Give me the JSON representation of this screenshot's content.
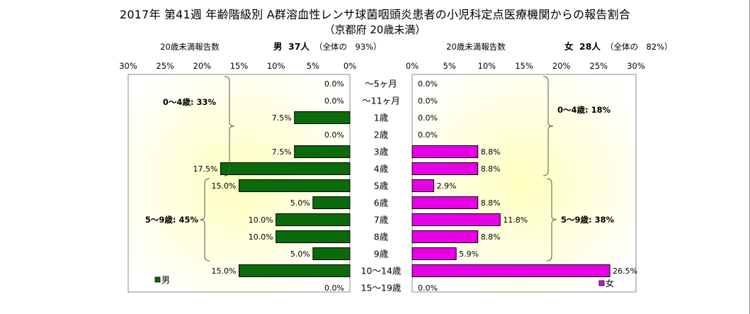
{
  "title": "2017年 第41週 年齢階級別 A群溶血性レンサ球菌咽頭炎患者の小児科定点医療機関からの報告割合",
  "subtitle": "（京都府 20歳未満）",
  "colors": {
    "male": "#0b6b0b",
    "female": "#e600e6",
    "plot_fill_center": "#ffffc0",
    "plot_fill_edge": "#ffffff"
  },
  "chart_data": {
    "type": "bar",
    "orientation": "horizontal-butterfly",
    "categories": [
      "〜5ヶ月",
      "〜11ヶ月",
      "1歳",
      "2歳",
      "3歳",
      "4歳",
      "5歳",
      "6歳",
      "7歳",
      "8歳",
      "9歳",
      "10〜14歳",
      "15〜19歳"
    ],
    "xlim": [
      0,
      30
    ],
    "ticks": [
      0,
      5,
      10,
      15,
      20,
      25,
      30
    ],
    "tick_labels_left": [
      "0%",
      "5%",
      "10%",
      "15%",
      "20%",
      "25%",
      "30%"
    ],
    "tick_labels_right": [
      "0%",
      "5%",
      "10%",
      "15%",
      "20%",
      "25%",
      "30%"
    ],
    "series": [
      {
        "name": "男",
        "side": "left",
        "header_label": "20歳未満報告数",
        "header_sex": "男",
        "header_count": "37人",
        "header_share": "（全体の　93%）",
        "values": [
          0,
          0,
          7.5,
          0,
          7.5,
          17.5,
          15.0,
          5.0,
          10.0,
          10.0,
          5.0,
          15.0,
          0
        ],
        "value_labels": [
          "0.0%",
          "0.0%",
          "7.5%",
          "0.0%",
          "7.5%",
          "17.5%",
          "15.0%",
          "5.0%",
          "10.0%",
          "10.0%",
          "5.0%",
          "15.0%",
          "0.0%"
        ],
        "groups": [
          {
            "label": "0〜4歳: 33%",
            "from": 0,
            "to": 5
          },
          {
            "label": "5〜9歳: 45%",
            "from": 6,
            "to": 10
          }
        ]
      },
      {
        "name": "女",
        "side": "right",
        "header_label": "20歳未満報告数",
        "header_sex": "女",
        "header_count": "28人",
        "header_share": "（全体の　82%）",
        "values": [
          0,
          0,
          0,
          0,
          8.8,
          8.8,
          2.9,
          8.8,
          11.8,
          8.8,
          5.9,
          26.5,
          0
        ],
        "value_labels": [
          "0.0%",
          "0.0%",
          "0.0%",
          "0.0%",
          "8.8%",
          "8.8%",
          "2.9%",
          "8.8%",
          "11.8%",
          "8.8%",
          "5.9%",
          "26.5%",
          "0.0%"
        ],
        "groups": [
          {
            "label": "0〜4歳: 18%",
            "from": 0,
            "to": 5
          },
          {
            "label": "5〜9歳: 38%",
            "from": 6,
            "to": 10
          }
        ]
      }
    ]
  }
}
